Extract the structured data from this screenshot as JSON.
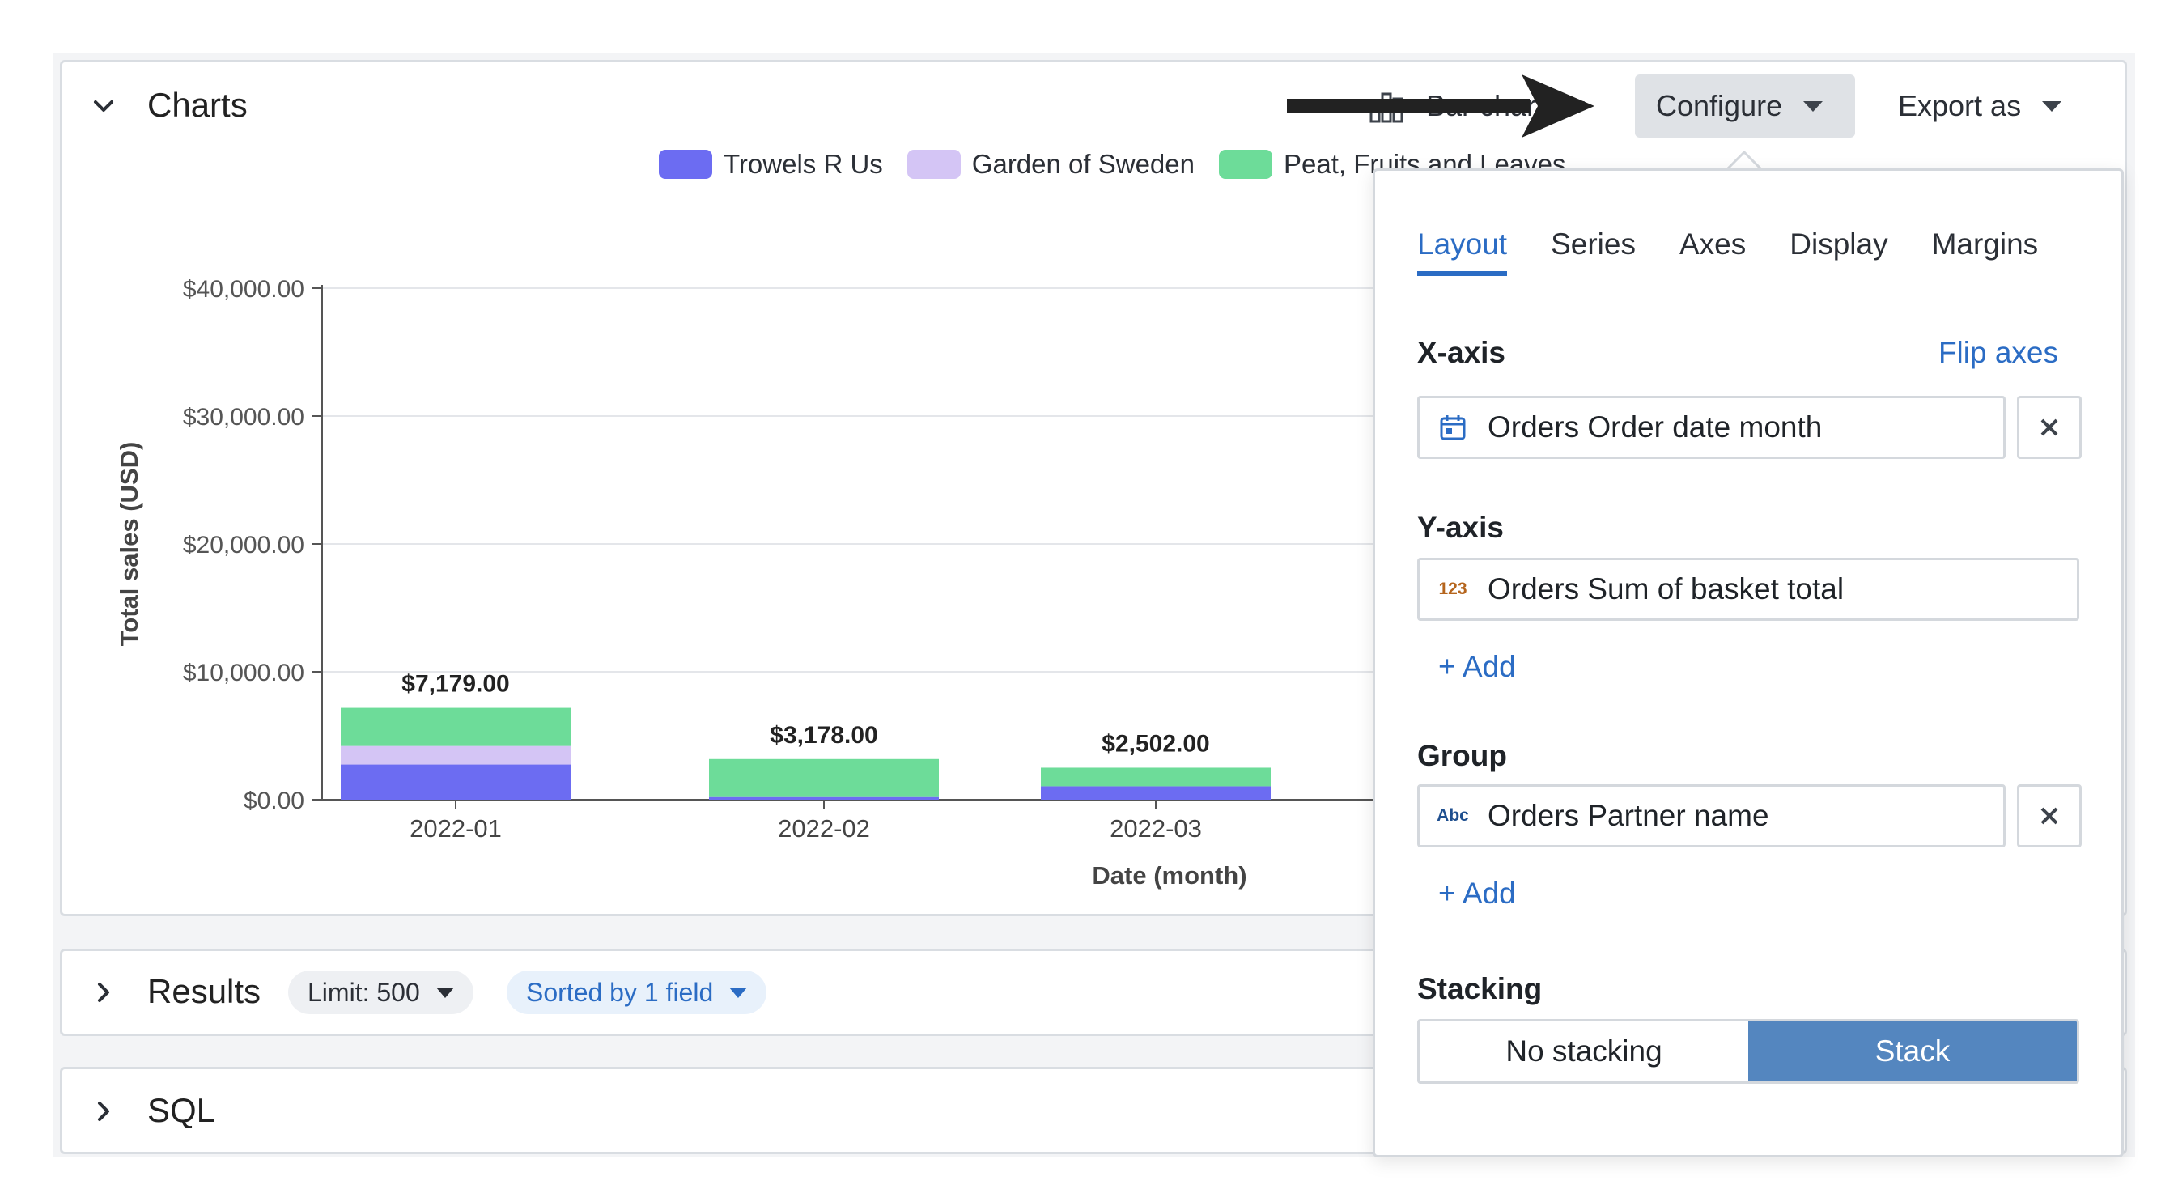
{
  "charts_panel": {
    "title": "Charts"
  },
  "toolbar": {
    "chart_type_label": "Bar chart",
    "configure_label": "Configure",
    "export_label": "Export as"
  },
  "legend": [
    {
      "label": "Trowels R Us",
      "color": "#6c6cf2"
    },
    {
      "label": "Garden of Sweden",
      "color": "#d4c5f5"
    },
    {
      "label": "Peat, Fruits and Leaves",
      "color": "#6ddc99"
    }
  ],
  "chart_data": {
    "type": "bar",
    "stacked": true,
    "categories": [
      "2022-01",
      "2022-02",
      "2022-03"
    ],
    "series": [
      {
        "name": "Trowels R Us",
        "values": [
          2750,
          210,
          1050
        ]
      },
      {
        "name": "Garden of Sweden",
        "values": [
          1450,
          0,
          0
        ]
      },
      {
        "name": "Peat, Fruits and Leaves",
        "values": [
          2979,
          2968,
          1452
        ]
      }
    ],
    "totals": [
      "$7,179.00",
      "$3,178.00",
      "$2,502.00"
    ],
    "xlabel": "Date (month)",
    "ylabel": "Total sales (USD)",
    "ylim": [
      0,
      40000
    ],
    "yticks": [
      "$0.00",
      "$10,000.00",
      "$20,000.00",
      "$30,000.00",
      "$40,000.00"
    ],
    "grid": true,
    "legend_position": "top"
  },
  "configure_popover": {
    "tabs": [
      "Layout",
      "Series",
      "Axes",
      "Display",
      "Margins"
    ],
    "active_tab": "Layout",
    "x_axis": {
      "label": "X-axis",
      "flip_label": "Flip axes",
      "field": "Orders Order date month",
      "icon": "calendar-icon"
    },
    "y_axis": {
      "label": "Y-axis",
      "field": "Orders Sum of basket total",
      "icon_text": "123",
      "add_label": "+ Add"
    },
    "group": {
      "label": "Group",
      "field": "Orders Partner name",
      "icon_text": "Abc",
      "add_label": "+ Add"
    },
    "stacking": {
      "label": "Stacking",
      "options": [
        "No stacking",
        "Stack"
      ],
      "selected": "Stack"
    }
  },
  "results_panel": {
    "title": "Results",
    "limit_label": "Limit: 500",
    "sort_label": "Sorted by 1 field"
  },
  "sql_panel": {
    "title": "SQL"
  },
  "accent_color": "#2b6cc4"
}
